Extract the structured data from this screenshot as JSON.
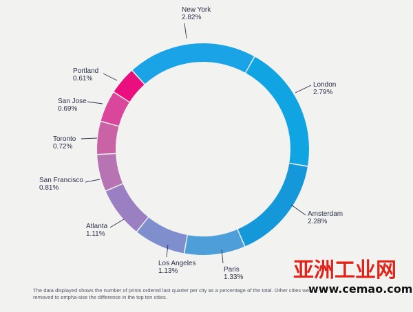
{
  "chart_data": {
    "type": "pie",
    "style": "donut",
    "title": "",
    "categories": [
      "New York",
      "London",
      "Amsterdam",
      "Paris",
      "Los Angeles",
      "Atlanta",
      "San Francisco",
      "Toronto",
      "San Jose",
      "Portland"
    ],
    "values": [
      2.82,
      2.79,
      2.28,
      1.33,
      1.13,
      1.11,
      0.81,
      0.72,
      0.69,
      0.61
    ],
    "value_labels": [
      "2.82%",
      "2.79%",
      "2.28%",
      "1.33%",
      "1.13%",
      "1.11%",
      "0.81%",
      "0.72%",
      "0.69%",
      "0.61%"
    ],
    "colors": [
      "#1aa3e6",
      "#10a4e3",
      "#1598d9",
      "#4e9fd9",
      "#7f8fce",
      "#9a80c2",
      "#b774b3",
      "#c963a5",
      "#d9469c",
      "#ea0f7e"
    ],
    "start_angle_deg": -42,
    "legend": "none"
  },
  "caption": "The data displayed shows the number of prints ordered last quarter per city as a percentage of the total. Other cities were removed to empha-sise the difference in the top ten cities.",
  "watermark": {
    "cn": "亚洲工业网",
    "url": "www.cemao.com"
  }
}
